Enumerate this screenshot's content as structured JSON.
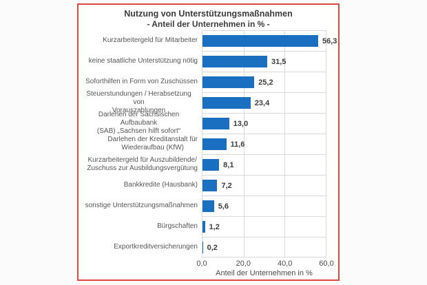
{
  "window": {
    "background": "#fbfbfb",
    "frame_border_color": "#dc4a41",
    "frame_background": "#ffffff",
    "gridline_color": "#d9d9d9"
  },
  "chart_data": {
    "type": "bar",
    "orientation": "horizontal",
    "title": "Nutzung von Unterstützungsmaßnahmen",
    "subtitle": "- Anteil der Unternehmen in % -",
    "xlabel": "Anteil der Unternehmen in %",
    "xlim": [
      0,
      60
    ],
    "grid": true,
    "legend": false,
    "bar_color": "#1b6fc0",
    "categories": [
      "Kurzarbeitergeld für Mitarbeiter",
      "keine staatliche Unterstützung nötig",
      "Soforthilfen in Form von Zuschüssen",
      "Steuerstundungen / Herabsetzung von\nVorauszahlungen",
      "Darlehen der Sächsischen Aufbaubank\n(SAB) „Sachsen hilft sofort“",
      "Darlehen der Kreditanstalt für\nWiederaufbau (KfW)",
      "Kurzarbeitergeld für Auszubildende/\nZuschuss zur Ausbildungsvergütung",
      "Bankkredite (Hausbank)",
      "sonstige Unterstützungsmaßnahmen",
      "Bürgschaften",
      "Exportkreditversicherungen"
    ],
    "values": [
      56.3,
      31.5,
      25.2,
      23.4,
      13.0,
      11.6,
      8.1,
      7.2,
      5.6,
      1.2,
      0.2
    ],
    "value_labels": [
      "56,3",
      "31,5",
      "25,2",
      "23,4",
      "13,0",
      "11,6",
      "8,1",
      "7,2",
      "5,6",
      "1,2",
      "0,2"
    ],
    "xticks": [
      {
        "value": 0,
        "label": "0,0"
      },
      {
        "value": 20,
        "label": "20,0"
      },
      {
        "value": 40,
        "label": "40,0"
      },
      {
        "value": 60,
        "label": "60,0"
      }
    ]
  }
}
